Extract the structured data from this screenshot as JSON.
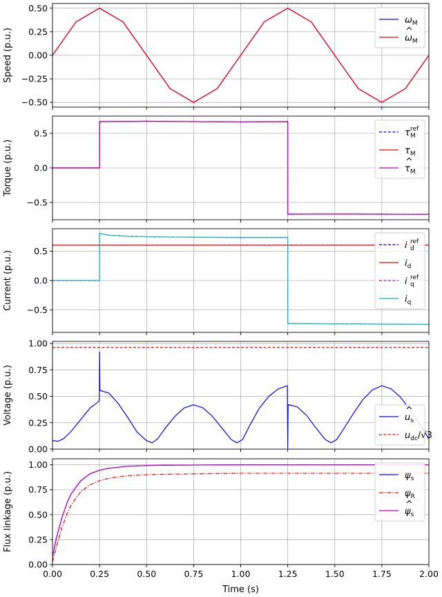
{
  "chart_data": [
    {
      "type": "line",
      "ylabel": "Speed (p.u.)",
      "xlim": [
        0,
        2
      ],
      "ylim": [
        -0.55,
        0.55
      ],
      "yticks": [
        "0.50",
        "0.25",
        "0.00",
        "−0.25",
        "−0.50"
      ],
      "ytick_values": [
        0.5,
        0.25,
        0,
        -0.25,
        -0.5
      ],
      "grid": true,
      "legend_position": "top-right",
      "series": [
        {
          "name": "ω",
          "sub": "M",
          "hat": false,
          "sup": "",
          "color": "#0000ff",
          "dash": "solid",
          "x": [
            0,
            0.125,
            0.25,
            0.375,
            0.5,
            0.625,
            0.75,
            0.875,
            1.0,
            1.125,
            1.25,
            1.375,
            1.5,
            1.625,
            1.75,
            1.875,
            2.0
          ],
          "y": [
            0,
            0.354,
            0.5,
            0.354,
            0,
            -0.354,
            -0.5,
            -0.354,
            0,
            0.354,
            0.5,
            0.354,
            0,
            -0.354,
            -0.5,
            -0.354,
            0
          ]
        },
        {
          "name": "ω",
          "sub": "M",
          "hat": true,
          "sup": "",
          "color": "#ff0000",
          "dash": "solid",
          "x": [
            0,
            0.125,
            0.25,
            0.375,
            0.5,
            0.625,
            0.75,
            0.875,
            1.0,
            1.125,
            1.25,
            1.375,
            1.5,
            1.625,
            1.75,
            1.875,
            2.0
          ],
          "y": [
            0,
            0.354,
            0.5,
            0.354,
            0,
            -0.354,
            -0.5,
            -0.354,
            0,
            0.354,
            0.5,
            0.354,
            0,
            -0.354,
            -0.5,
            -0.354,
            0
          ]
        }
      ]
    },
    {
      "type": "line",
      "ylabel": "Torque (p.u.)",
      "xlim": [
        0,
        2
      ],
      "ylim": [
        -0.75,
        0.75
      ],
      "yticks": [
        "0.5",
        "0.0",
        "−0.5"
      ],
      "ytick_values": [
        0.5,
        0,
        -0.5
      ],
      "grid": true,
      "legend_position": "top-right",
      "series": [
        {
          "name": "τ",
          "sub": "M",
          "hat": false,
          "sup": "ref",
          "color": "#0000ff",
          "dash": "dashed",
          "x": [
            0,
            0.25,
            0.25,
            0.5,
            1.0,
            1.25,
            1.25,
            1.5,
            2.0
          ],
          "y": [
            0,
            0,
            0.67,
            0.675,
            0.665,
            0.67,
            -0.67,
            -0.668,
            -0.672
          ]
        },
        {
          "name": "τ",
          "sub": "M",
          "hat": false,
          "sup": "",
          "color": "#ff0000",
          "dash": "solid",
          "x": [
            0,
            0.25,
            0.25,
            0.5,
            1.0,
            1.25,
            1.25,
            1.5,
            2.0
          ],
          "y": [
            0,
            0,
            0.67,
            0.675,
            0.665,
            0.67,
            -0.67,
            -0.668,
            -0.672
          ]
        },
        {
          "name": "τ",
          "sub": "M",
          "hat": true,
          "sup": "",
          "color": "#bf00bf",
          "dash": "solid",
          "x": [
            0,
            0.25,
            0.25,
            0.5,
            1.0,
            1.25,
            1.25,
            1.5,
            2.0
          ],
          "y": [
            0,
            0,
            0.67,
            0.675,
            0.665,
            0.67,
            -0.67,
            -0.668,
            -0.672
          ]
        }
      ]
    },
    {
      "type": "line",
      "ylabel": "Current (p.u.)",
      "xlim": [
        0,
        2
      ],
      "ylim": [
        -0.88,
        0.88
      ],
      "yticks": [
        "0.5",
        "0.0",
        "−0.5"
      ],
      "ytick_values": [
        0.5,
        0,
        -0.5
      ],
      "grid": true,
      "legend_position": "top-right",
      "series": [
        {
          "name": "i",
          "sub": "d",
          "hat": false,
          "sup": "ref",
          "color": "#0000ff",
          "dash": "dashed",
          "x": [
            0,
            2
          ],
          "y": [
            0.6,
            0.6
          ]
        },
        {
          "name": "i",
          "sub": "d",
          "hat": false,
          "sup": "",
          "color": "#ff0000",
          "dash": "solid",
          "x": [
            0,
            2
          ],
          "y": [
            0.6,
            0.6
          ]
        },
        {
          "name": "i",
          "sub": "q",
          "hat": false,
          "sup": "ref",
          "color": "#bf00bf",
          "dash": "dashed",
          "x": [
            0,
            0.25,
            0.25,
            0.3,
            0.4,
            0.6,
            1.0,
            1.25,
            1.25,
            1.5,
            2.0
          ],
          "y": [
            0,
            0,
            0.8,
            0.77,
            0.75,
            0.74,
            0.73,
            0.73,
            -0.73,
            -0.735,
            -0.745
          ]
        },
        {
          "name": "i",
          "sub": "q",
          "hat": false,
          "sup": "",
          "color": "#00bfbf",
          "dash": "solid",
          "x": [
            0,
            0.25,
            0.25,
            0.3,
            0.4,
            0.6,
            1.0,
            1.25,
            1.25,
            1.5,
            2.0
          ],
          "y": [
            0,
            0,
            0.8,
            0.77,
            0.75,
            0.74,
            0.73,
            0.73,
            -0.73,
            -0.735,
            -0.745
          ]
        }
      ]
    },
    {
      "type": "line",
      "ylabel": "Voltage (p.u.)",
      "xlim": [
        0,
        2
      ],
      "ylim": [
        0,
        1.02
      ],
      "yticks": [
        "1.00",
        "0.75",
        "0.50",
        "0.25",
        "0.00"
      ],
      "ytick_values": [
        1.0,
        0.75,
        0.5,
        0.25,
        0
      ],
      "grid": true,
      "legend_position": "bottom-right",
      "series": [
        {
          "name": "u",
          "sub": "s",
          "hat": true,
          "sup": "",
          "color": "#0000ff",
          "dash": "solid",
          "x": [
            0,
            0.03,
            0.06,
            0.1,
            0.15,
            0.2,
            0.245,
            0.249,
            0.25,
            0.252,
            0.253,
            0.3,
            0.35,
            0.4,
            0.45,
            0.5,
            0.53,
            0.56,
            0.6,
            0.65,
            0.7,
            0.75,
            0.8,
            0.85,
            0.9,
            0.95,
            0.98,
            1.01,
            1.05,
            1.1,
            1.15,
            1.2,
            1.248,
            1.25,
            1.252,
            1.255,
            1.3,
            1.35,
            1.4,
            1.45,
            1.48,
            1.51,
            1.55,
            1.6,
            1.65,
            1.7,
            1.75,
            1.8,
            1.85,
            1.9,
            1.95,
            2.0
          ],
          "y": [
            0.08,
            0.075,
            0.1,
            0.17,
            0.28,
            0.39,
            0.45,
            0.46,
            0.92,
            0.56,
            0.555,
            0.53,
            0.43,
            0.3,
            0.16,
            0.08,
            0.06,
            0.1,
            0.2,
            0.31,
            0.39,
            0.42,
            0.39,
            0.31,
            0.2,
            0.09,
            0.06,
            0.09,
            0.23,
            0.39,
            0.5,
            0.57,
            0.6,
            0.01,
            0.42,
            0.42,
            0.4,
            0.32,
            0.2,
            0.09,
            0.06,
            0.09,
            0.2,
            0.34,
            0.47,
            0.56,
            0.6,
            0.57,
            0.49,
            0.37,
            0.24,
            0.1
          ]
        },
        {
          "name": "u",
          "sub": "dc",
          "hat": false,
          "sup": "",
          "suffix": "/√3",
          "color": "#ff0000",
          "dash": "dashed",
          "x": [
            0,
            2
          ],
          "y": [
            0.962,
            0.962
          ]
        }
      ]
    },
    {
      "type": "line",
      "ylabel": "Flux linkage (p.u.)",
      "xlabel": "Time (s)",
      "xlim": [
        0,
        2
      ],
      "ylim": [
        0,
        1.06
      ],
      "yticks": [
        "1.00",
        "0.75",
        "0.50",
        "0.25",
        "0.00"
      ],
      "ytick_values": [
        1.0,
        0.75,
        0.5,
        0.25,
        0
      ],
      "xticks": [
        "0.00",
        "0.25",
        "0.50",
        "0.75",
        "1.00",
        "1.25",
        "1.50",
        "1.75",
        "2.00"
      ],
      "xtick_values": [
        0,
        0.25,
        0.5,
        0.75,
        1.0,
        1.25,
        1.5,
        1.75,
        2.0
      ],
      "grid": true,
      "legend_position": "top-right",
      "series": [
        {
          "name": "ψ",
          "sub": "s",
          "hat": false,
          "sup": "",
          "color": "#0000ff",
          "dash": "solid",
          "x": [
            0,
            0.02,
            0.05,
            0.08,
            0.1,
            0.15,
            0.2,
            0.25,
            0.3,
            0.4,
            0.5,
            0.6,
            0.8,
            1.0,
            1.5,
            2.0
          ],
          "y": [
            0.08,
            0.26,
            0.47,
            0.63,
            0.71,
            0.84,
            0.91,
            0.945,
            0.965,
            0.985,
            0.993,
            0.996,
            0.998,
            1.0,
            1.0,
            1.0
          ]
        },
        {
          "name": "ψ",
          "sub": "R",
          "hat": false,
          "sup": "",
          "color": "#ff0000",
          "dash": "dashdot",
          "x": [
            0,
            0.02,
            0.05,
            0.08,
            0.1,
            0.15,
            0.2,
            0.25,
            0.3,
            0.4,
            0.5,
            0.6,
            0.8,
            1.0,
            1.5,
            2.0
          ],
          "y": [
            0.03,
            0.17,
            0.37,
            0.52,
            0.6,
            0.73,
            0.8,
            0.84,
            0.865,
            0.89,
            0.9,
            0.905,
            0.91,
            0.915,
            0.915,
            0.915
          ]
        },
        {
          "name": "ψ",
          "sub": "s",
          "hat": true,
          "sup": "",
          "color": "#bf00bf",
          "dash": "solid",
          "x": [
            0,
            0.02,
            0.05,
            0.08,
            0.1,
            0.15,
            0.2,
            0.25,
            0.3,
            0.4,
            0.5,
            0.6,
            0.8,
            1.0,
            1.5,
            2.0
          ],
          "y": [
            0.08,
            0.26,
            0.47,
            0.63,
            0.71,
            0.84,
            0.91,
            0.945,
            0.965,
            0.985,
            0.993,
            0.996,
            0.998,
            1.0,
            1.0,
            1.0
          ]
        }
      ]
    }
  ]
}
